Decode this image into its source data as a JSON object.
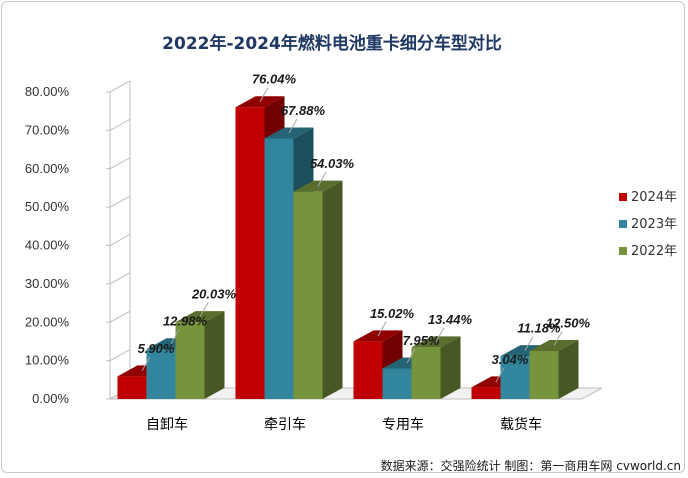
{
  "chart_data": {
    "type": "bar",
    "title": "2022年-2024年燃料电池重卡细分车型对比",
    "categories": [
      "自卸车",
      "牵引车",
      "专用车",
      "载货车"
    ],
    "series": [
      {
        "name": "2024年",
        "color": "#c00000",
        "values": [
          5.9,
          76.04,
          15.02,
          3.04
        ],
        "labels": [
          "5.90%",
          "76.04%",
          "15.02%",
          "3.04%"
        ]
      },
      {
        "name": "2023年",
        "color": "#31859c",
        "values": [
          12.98,
          67.88,
          7.95,
          11.18
        ],
        "labels": [
          "12.98%",
          "67.88%",
          "7.95%",
          "11.18%"
        ]
      },
      {
        "name": "2022年",
        "color": "#77933c",
        "values": [
          20.03,
          54.03,
          13.44,
          12.5
        ],
        "labels": [
          "20.03%",
          "54.03%",
          "13.44%",
          "12.50%"
        ]
      }
    ],
    "ylim": [
      0,
      80
    ],
    "yticks": [
      "0.00%",
      "10.00%",
      "20.00%",
      "30.00%",
      "40.00%",
      "50.00%",
      "60.00%",
      "70.00%",
      "80.00%"
    ],
    "xlabel": "",
    "ylabel": "",
    "grid": false,
    "legend_position": "right"
  },
  "source": "数据来源：交强险统计  制图：第一商用车网 cvworld.cn"
}
